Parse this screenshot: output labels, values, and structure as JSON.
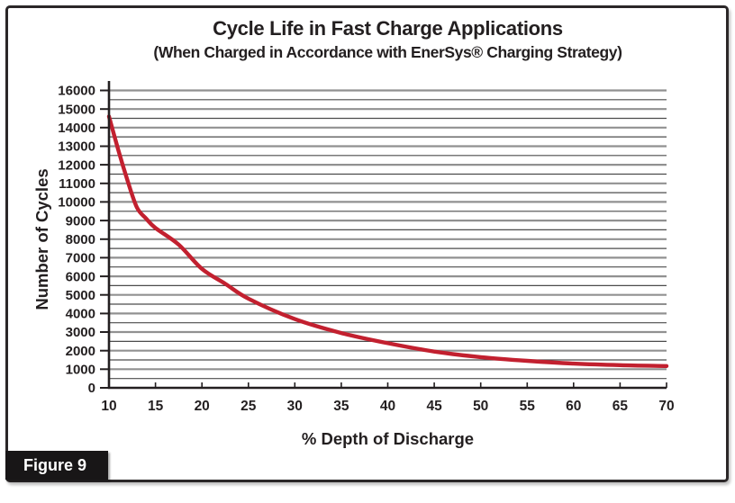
{
  "frame": {
    "figure_label": "Figure 9"
  },
  "chart_data": {
    "type": "line",
    "title": "Cycle Life in Fast Charge Applications",
    "subtitle": "(When Charged in Accordance with EnerSys® Charging Strategy)",
    "xlabel": "% Depth of Discharge",
    "ylabel": "Number of Cycles",
    "xlim": [
      10,
      70
    ],
    "ylim": [
      0,
      16000
    ],
    "x_ticks": [
      10,
      15,
      20,
      25,
      30,
      35,
      40,
      45,
      50,
      55,
      60,
      65,
      70
    ],
    "y_ticks": [
      0,
      1000,
      2000,
      3000,
      4000,
      5000,
      6000,
      7000,
      8000,
      9000,
      10000,
      11000,
      12000,
      13000,
      14000,
      15000,
      16000
    ],
    "y_minor_step": 500,
    "grid": "horizontal-only",
    "legend": "none",
    "series": [
      {
        "name": "Cycle life in fast charge",
        "color": "#c2202f",
        "x": [
          10,
          11,
          12,
          13,
          14,
          15,
          17.5,
          20,
          22.5,
          25,
          30,
          35,
          40,
          45,
          50,
          55,
          60,
          65,
          70
        ],
        "y": [
          14600,
          12800,
          11150,
          9700,
          9100,
          8600,
          7700,
          6400,
          5600,
          4800,
          3700,
          2950,
          2400,
          1950,
          1650,
          1450,
          1300,
          1220,
          1170
        ]
      }
    ]
  },
  "colors": {
    "curve": "#c2202f",
    "axis": "#231f20",
    "grid_major": "#919191",
    "grid_minor": "#4c4c4c",
    "text": "#231f20",
    "frame_border": "#2b2728",
    "figure_box_bg": "#181617",
    "figure_box_text": "#ffffff",
    "background": "#ffffff"
  }
}
